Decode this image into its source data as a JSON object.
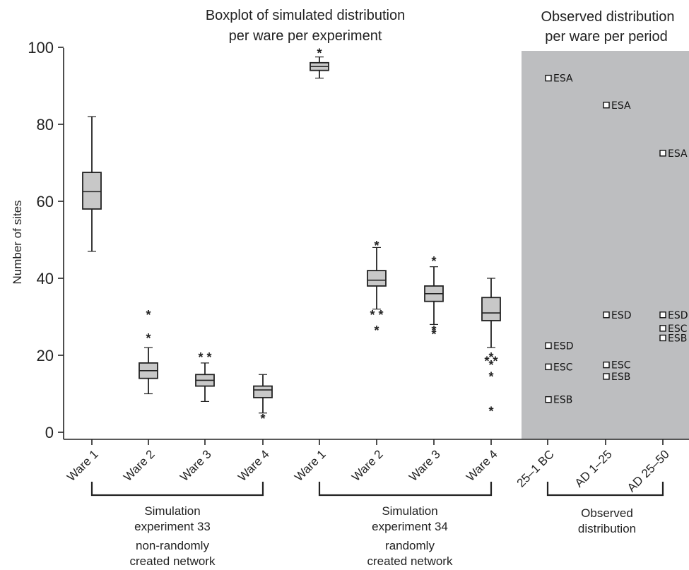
{
  "chart_data": {
    "type": "boxplot",
    "title_left": [
      "Boxplot of simulated distribution",
      "per ware per experiment"
    ],
    "title_right": [
      "Observed distribution",
      "per ware per period"
    ],
    "ylabel": "Number of sites",
    "ylim": [
      0,
      100
    ],
    "yticks": [
      0,
      20,
      40,
      60,
      80,
      100
    ],
    "categories": [
      "Ware 1",
      "Ware 2",
      "Ware 3",
      "Ware 4",
      "Ware 1",
      "Ware 2",
      "Ware 3",
      "Ware 4",
      "25–1 BC",
      "AD 1–25",
      "AD 25–50"
    ],
    "boxes": [
      {
        "category": "Ware 1",
        "group": "Simulation experiment 33",
        "whisker_low": 47,
        "q1": 58,
        "median": 62.5,
        "q3": 67.5,
        "whisker_high": 82,
        "outliers": []
      },
      {
        "category": "Ware 2",
        "group": "Simulation experiment 33",
        "whisker_low": 10,
        "q1": 14,
        "median": 16,
        "q3": 18,
        "whisker_high": 22,
        "outliers": [
          25,
          31
        ]
      },
      {
        "category": "Ware 3",
        "group": "Simulation experiment 33",
        "whisker_low": 8,
        "q1": 12,
        "median": 13.5,
        "q3": 15,
        "whisker_high": 18,
        "outliers": [
          20,
          20
        ]
      },
      {
        "category": "Ware 4",
        "group": "Simulation experiment 33",
        "whisker_low": 5,
        "q1": 9,
        "median": 11,
        "q3": 12,
        "whisker_high": 15,
        "outliers": [
          4
        ]
      },
      {
        "category": "Ware 1",
        "group": "Simulation experiment 34",
        "whisker_low": 92,
        "q1": 94,
        "median": 95,
        "q3": 96,
        "whisker_high": 97.5,
        "outliers": [
          99
        ]
      },
      {
        "category": "Ware 2",
        "group": "Simulation experiment 34",
        "whisker_low": 32,
        "q1": 38,
        "median": 39.5,
        "q3": 42,
        "whisker_high": 48,
        "outliers": [
          49,
          31,
          31,
          27
        ]
      },
      {
        "category": "Ware 3",
        "group": "Simulation experiment 34",
        "whisker_low": 28,
        "q1": 34,
        "median": 36,
        "q3": 38,
        "whisker_high": 43,
        "outliers": [
          45,
          27,
          26
        ]
      },
      {
        "category": "Ware 4",
        "group": "Simulation experiment 34",
        "whisker_low": 22,
        "q1": 29,
        "median": 31,
        "q3": 35,
        "whisker_high": 40,
        "outliers": [
          20,
          19,
          19,
          18,
          15,
          6
        ]
      }
    ],
    "observed": [
      {
        "period": "25–1 BC",
        "points": [
          {
            "label": "ESA",
            "value": 92
          },
          {
            "label": "ESD",
            "value": 22.5
          },
          {
            "label": "ESC",
            "value": 17
          },
          {
            "label": "ESB",
            "value": 8.5
          }
        ]
      },
      {
        "period": "AD 1–25",
        "points": [
          {
            "label": "ESA",
            "value": 85
          },
          {
            "label": "ESD",
            "value": 30.5
          },
          {
            "label": "ESC",
            "value": 17.5
          },
          {
            "label": "ESB",
            "value": 14.5
          }
        ]
      },
      {
        "period": "AD 25–50",
        "points": [
          {
            "label": "ESA",
            "value": 72.5
          },
          {
            "label": "ESD",
            "value": 30.5
          },
          {
            "label": "ESC",
            "value": 27
          },
          {
            "label": "ESB",
            "value": 24.5
          }
        ]
      }
    ],
    "groups": [
      {
        "lines": [
          "Simulation",
          "experiment 33",
          "non-randomly",
          "created network"
        ]
      },
      {
        "lines": [
          "Simulation",
          "experiment 34",
          "randomly",
          "created network"
        ]
      },
      {
        "lines": [
          "Observed",
          "distribution"
        ]
      }
    ],
    "colors": {
      "box_fill": "#c8c8c8",
      "shade": "#bdbec0",
      "ink": "#222222"
    }
  }
}
